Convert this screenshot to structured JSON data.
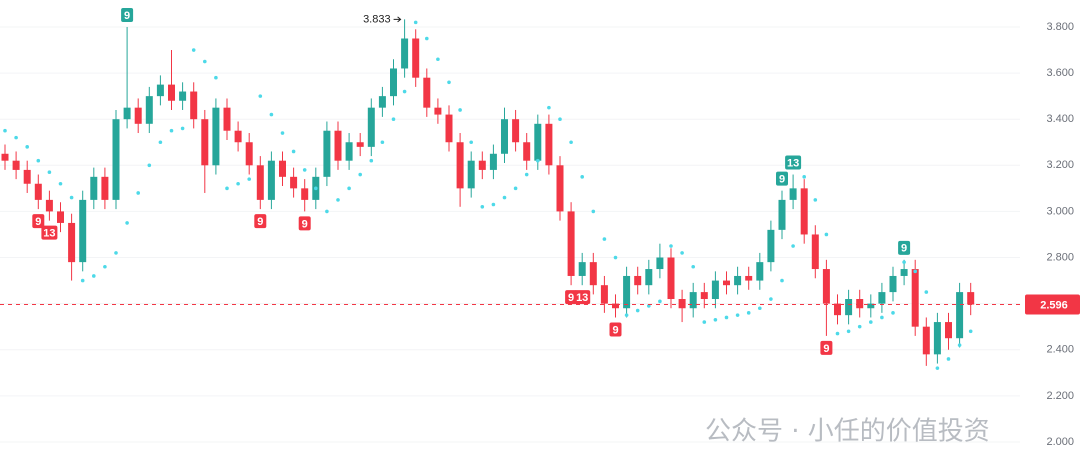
{
  "chart_data": {
    "type": "candlestick",
    "ylim": [
      1.861,
      3.917
    ],
    "yticks": [
      {
        "value": 2.0,
        "label": "2.000"
      },
      {
        "value": 2.2,
        "label": "2.200"
      },
      {
        "value": 2.4,
        "label": "2.400"
      },
      {
        "value": 2.6,
        "label": "2.600"
      },
      {
        "value": 2.8,
        "label": "2.800"
      },
      {
        "value": 3.0,
        "label": "3.000"
      },
      {
        "value": 3.2,
        "label": "3.200"
      },
      {
        "value": 3.4,
        "label": "3.400"
      },
      {
        "value": 3.6,
        "label": "3.600"
      },
      {
        "value": 3.8,
        "label": "3.800"
      }
    ],
    "grid": true,
    "up_color": "#26a69a",
    "down_color": "#f23645",
    "sar_color": "#4dd9e8",
    "open": [
      3.25,
      3.22,
      3.18,
      3.12,
      3.05,
      3.0,
      2.95,
      2.78,
      3.05,
      3.15,
      3.05,
      3.4,
      3.45,
      3.38,
      3.5,
      3.55,
      3.48,
      3.52,
      3.4,
      3.2,
      3.45,
      3.35,
      3.3,
      3.2,
      3.05,
      3.22,
      3.15,
      3.1,
      3.05,
      3.15,
      3.35,
      3.22,
      3.3,
      3.28,
      3.45,
      3.5,
      3.62,
      3.75,
      3.58,
      3.45,
      3.42,
      3.3,
      3.1,
      3.22,
      3.18,
      3.25,
      3.4,
      3.3,
      3.22,
      3.38,
      3.2,
      3.0,
      2.72,
      2.78,
      2.68,
      2.6,
      2.58,
      2.72,
      2.68,
      2.75,
      2.8,
      2.62,
      2.58,
      2.65,
      2.62,
      2.7,
      2.68,
      2.72,
      2.7,
      2.78,
      2.92,
      3.05,
      3.1,
      2.9,
      2.75,
      2.6,
      2.55,
      2.62,
      2.58,
      2.6,
      2.65,
      2.72,
      2.75,
      2.5,
      2.38,
      2.52,
      2.45,
      2.65
    ],
    "high": [
      3.29,
      3.26,
      3.22,
      3.16,
      3.09,
      3.04,
      2.99,
      3.09,
      3.19,
      3.19,
      3.44,
      3.8,
      3.49,
      3.54,
      3.59,
      3.7,
      3.56,
      3.56,
      3.44,
      3.49,
      3.49,
      3.39,
      3.34,
      3.24,
      3.26,
      3.26,
      3.19,
      3.14,
      3.19,
      3.39,
      3.39,
      3.34,
      3.34,
      3.49,
      3.54,
      3.66,
      3.833,
      3.79,
      3.62,
      3.49,
      3.46,
      3.34,
      3.26,
      3.26,
      3.29,
      3.45,
      3.44,
      3.34,
      3.42,
      3.42,
      3.24,
      3.04,
      2.82,
      2.82,
      2.72,
      2.64,
      2.76,
      2.76,
      2.79,
      2.86,
      2.84,
      2.66,
      2.69,
      2.69,
      2.74,
      2.74,
      2.76,
      2.76,
      2.82,
      2.96,
      3.09,
      3.16,
      3.14,
      2.94,
      2.79,
      2.64,
      2.66,
      2.66,
      2.64,
      2.69,
      2.76,
      2.79,
      2.79,
      2.54,
      2.56,
      2.56,
      2.69,
      2.69
    ],
    "low": [
      3.18,
      3.14,
      3.08,
      3.01,
      2.96,
      2.91,
      2.7,
      2.74,
      3.01,
      3.01,
      3.01,
      3.36,
      3.34,
      3.34,
      3.46,
      3.44,
      3.44,
      3.36,
      3.08,
      3.16,
      3.31,
      3.26,
      3.16,
      3.01,
      3.01,
      3.11,
      3.06,
      3.0,
      3.01,
      3.11,
      3.18,
      3.18,
      3.24,
      3.24,
      3.41,
      3.46,
      3.58,
      3.54,
      3.41,
      3.38,
      3.26,
      3.02,
      3.06,
      3.14,
      3.14,
      3.21,
      3.26,
      3.18,
      3.18,
      3.16,
      2.96,
      2.68,
      2.68,
      2.64,
      2.56,
      2.54,
      2.54,
      2.64,
      2.64,
      2.71,
      2.58,
      2.52,
      2.54,
      2.58,
      2.58,
      2.64,
      2.64,
      2.66,
      2.66,
      2.74,
      2.88,
      3.01,
      2.86,
      2.71,
      2.46,
      2.51,
      2.51,
      2.54,
      2.54,
      2.56,
      2.61,
      2.68,
      2.46,
      2.33,
      2.34,
      2.4,
      2.41,
      2.55
    ],
    "close": [
      3.22,
      3.18,
      3.12,
      3.05,
      3.0,
      2.95,
      2.78,
      3.05,
      3.15,
      3.05,
      3.4,
      3.45,
      3.38,
      3.5,
      3.55,
      3.48,
      3.52,
      3.4,
      3.2,
      3.45,
      3.35,
      3.3,
      3.2,
      3.05,
      3.22,
      3.15,
      3.1,
      3.05,
      3.15,
      3.35,
      3.22,
      3.3,
      3.28,
      3.45,
      3.5,
      3.62,
      3.75,
      3.58,
      3.45,
      3.42,
      3.3,
      3.1,
      3.22,
      3.18,
      3.25,
      3.4,
      3.3,
      3.22,
      3.38,
      3.2,
      3.0,
      2.72,
      2.78,
      2.68,
      2.6,
      2.58,
      2.72,
      2.68,
      2.75,
      2.8,
      2.62,
      2.58,
      2.65,
      2.62,
      2.7,
      2.68,
      2.72,
      2.7,
      2.78,
      2.92,
      3.05,
      3.1,
      2.9,
      2.75,
      2.6,
      2.55,
      2.62,
      2.58,
      2.6,
      2.65,
      2.72,
      2.75,
      2.5,
      2.38,
      2.52,
      2.45,
      2.65,
      2.596
    ],
    "sar": [
      3.35,
      3.32,
      3.28,
      3.22,
      3.17,
      3.12,
      3.06,
      2.7,
      2.72,
      2.76,
      2.82,
      2.95,
      3.08,
      3.2,
      3.3,
      3.35,
      3.36,
      3.7,
      3.65,
      3.58,
      3.1,
      3.12,
      3.14,
      3.5,
      3.42,
      3.34,
      3.26,
      3.18,
      3.1,
      3.0,
      3.05,
      3.1,
      3.16,
      3.22,
      3.3,
      3.4,
      3.52,
      3.82,
      3.75,
      3.66,
      3.56,
      3.44,
      3.3,
      3.02,
      3.03,
      3.06,
      3.1,
      3.16,
      3.22,
      3.45,
      3.4,
      3.3,
      3.15,
      3.0,
      2.88,
      2.8,
      2.55,
      2.57,
      2.59,
      2.61,
      2.85,
      2.82,
      2.76,
      2.52,
      2.53,
      2.54,
      2.55,
      2.56,
      2.58,
      2.62,
      2.7,
      2.85,
      3.15,
      3.05,
      2.9,
      2.47,
      2.48,
      2.5,
      2.52,
      2.54,
      2.56,
      2.78,
      2.74,
      2.65,
      2.32,
      2.36,
      2.42,
      2.48
    ],
    "td_labels": [
      {
        "x": 3,
        "text": "9",
        "side": "below"
      },
      {
        "x": 4,
        "text": "13",
        "side": "below"
      },
      {
        "x": 11,
        "text": "9",
        "side": "above"
      },
      {
        "x": 23,
        "text": "9",
        "side": "below"
      },
      {
        "x": 27,
        "text": "9",
        "side": "below"
      },
      {
        "x": 51,
        "text": "9",
        "side": "below"
      },
      {
        "x": 52,
        "text": "13",
        "side": "below"
      },
      {
        "x": 55,
        "text": "9",
        "side": "below"
      },
      {
        "x": 70,
        "text": "9",
        "side": "above"
      },
      {
        "x": 71,
        "text": "13",
        "side": "above"
      },
      {
        "x": 74,
        "text": "9",
        "side": "below"
      },
      {
        "x": 81,
        "text": "9",
        "side": "above"
      }
    ],
    "watermark": "公众号 · 小任的价值投资"
  }
}
